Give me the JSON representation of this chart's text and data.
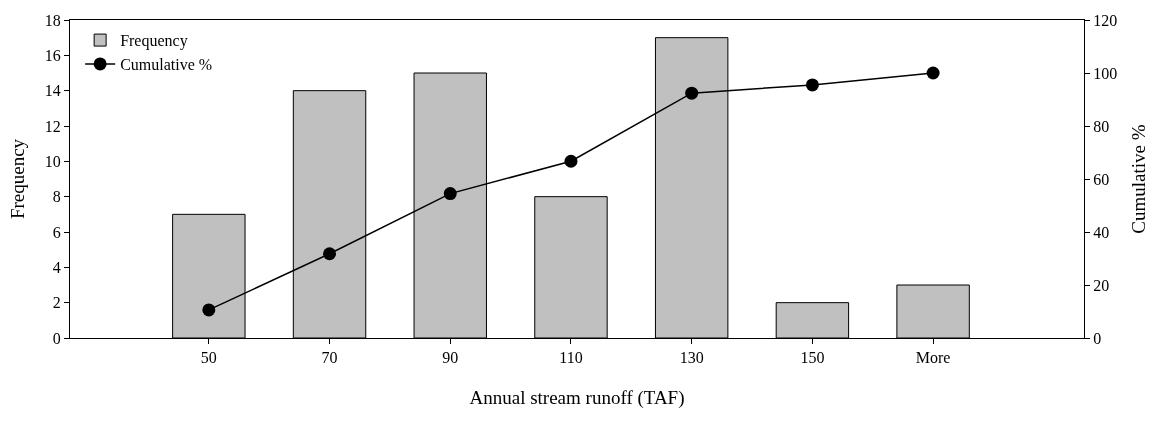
{
  "chart_data": {
    "type": "bar",
    "xlabel": "Annual stream runoff (TAF)",
    "ylabel": "Frequency",
    "y2label": "Cumulative %",
    "categories": [
      "50",
      "70",
      "90",
      "110",
      "130",
      "150",
      "More"
    ],
    "series": [
      {
        "name": "Frequency",
        "color": "#c0c0c0",
        "values": [
          7,
          14,
          15,
          8,
          17,
          2,
          3
        ]
      },
      {
        "name": "Cumulative %",
        "type": "line",
        "axis": "y2",
        "color": "#000000",
        "marker": "circle",
        "values": [
          10.6,
          31.8,
          54.5,
          66.7,
          92.4,
          95.5,
          100
        ]
      }
    ],
    "ylim": [
      0,
      18
    ],
    "yticks": [
      0,
      2,
      4,
      6,
      8,
      10,
      12,
      14,
      16,
      18
    ],
    "y2lim": [
      0,
      120
    ],
    "y2ticks": [
      0,
      20,
      40,
      60,
      80,
      100,
      120
    ],
    "legend": "top left"
  }
}
